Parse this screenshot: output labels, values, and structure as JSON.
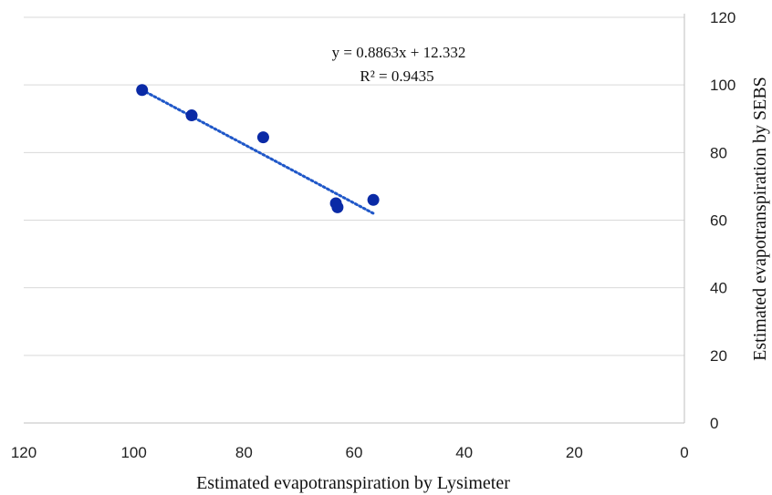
{
  "chart_data": {
    "type": "scatter",
    "title": "",
    "xlabel": "Estimated evapotranspiration by Lysimeter",
    "ylabel": "Estimated evapotranspiration by SEBS",
    "xlim": [
      120,
      0
    ],
    "ylim": [
      0,
      120
    ],
    "x_reversed": true,
    "y_axis_side": "right",
    "x_ticks": [
      120,
      100,
      80,
      60,
      40,
      20,
      0
    ],
    "y_ticks": [
      0,
      20,
      40,
      60,
      80,
      100,
      120
    ],
    "grid": "horizontal",
    "marker_color": "#0a2aa6",
    "trendline_color": "#1f57c8",
    "series": [
      {
        "x": [
          98.5,
          89.5,
          76.5,
          63.3,
          63.0,
          56.5
        ],
        "y": [
          98.5,
          91.0,
          84.5,
          65.0,
          63.8,
          66.0
        ]
      }
    ],
    "trendline": {
      "x_range": [
        98.5,
        56.5
      ],
      "y_range": [
        98.5,
        62.0
      ],
      "equation": "y = 0.8863x + 12.332",
      "r_squared": "R² = 0.9435"
    }
  }
}
